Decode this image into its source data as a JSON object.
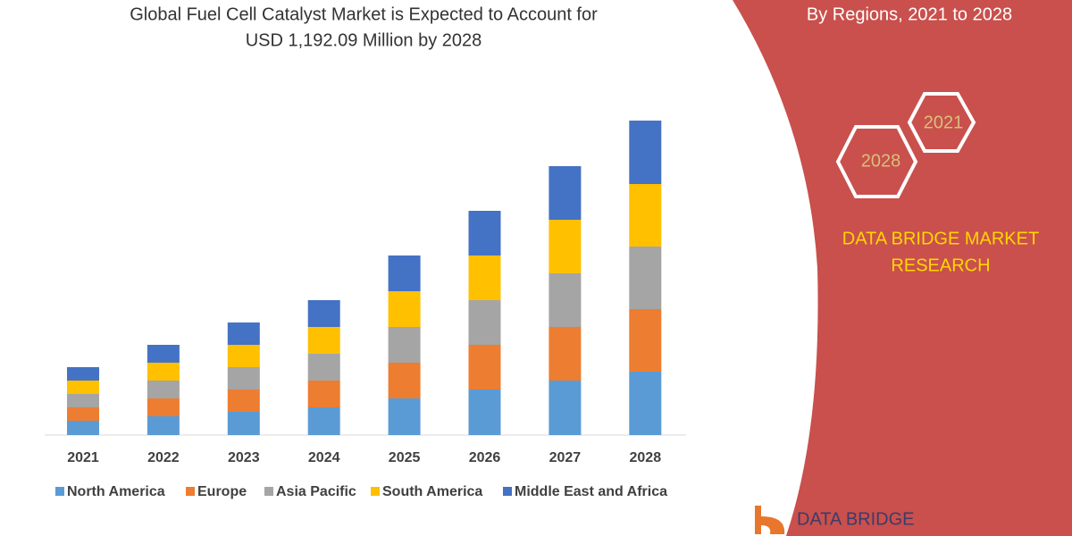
{
  "chart_data": {
    "type": "stacked-bar",
    "title_lines": [
      "Global Fuel Cell Catalyst Market is Expected to Account for",
      "USD 1,192.09 Million by 2028"
    ],
    "subtitle": "By Regions, 2021 to 2028",
    "badges": [
      "2021",
      "2028"
    ],
    "brand_lines": [
      "DATA BRIDGE MARKET",
      "RESEARCH"
    ],
    "logo": "DATA BRIDGE",
    "categories": [
      "2021",
      "2022",
      "2023",
      "2024",
      "2025",
      "2026",
      "2027",
      "2028"
    ],
    "series": [
      {
        "name": "North America",
        "color": "#5b9bd5",
        "values": [
          16,
          21,
          26,
          31,
          41,
          51,
          61,
          71
        ]
      },
      {
        "name": "Europe",
        "color": "#ed7d31",
        "values": [
          15,
          20,
          25,
          30,
          40,
          50,
          60,
          70
        ]
      },
      {
        "name": "Asia Pacific",
        "color": "#a5a5a5",
        "values": [
          15,
          20,
          25,
          30,
          40,
          50,
          60,
          70
        ]
      },
      {
        "name": "South America",
        "color": "#ffc000",
        "values": [
          15,
          20,
          25,
          30,
          40,
          50,
          60,
          70
        ]
      },
      {
        "name": "Middle East and Africa",
        "color": "#4472c4",
        "values": [
          15,
          20,
          25,
          30,
          40,
          50,
          60,
          71
        ]
      }
    ],
    "ylim": [
      0,
      360
    ]
  }
}
